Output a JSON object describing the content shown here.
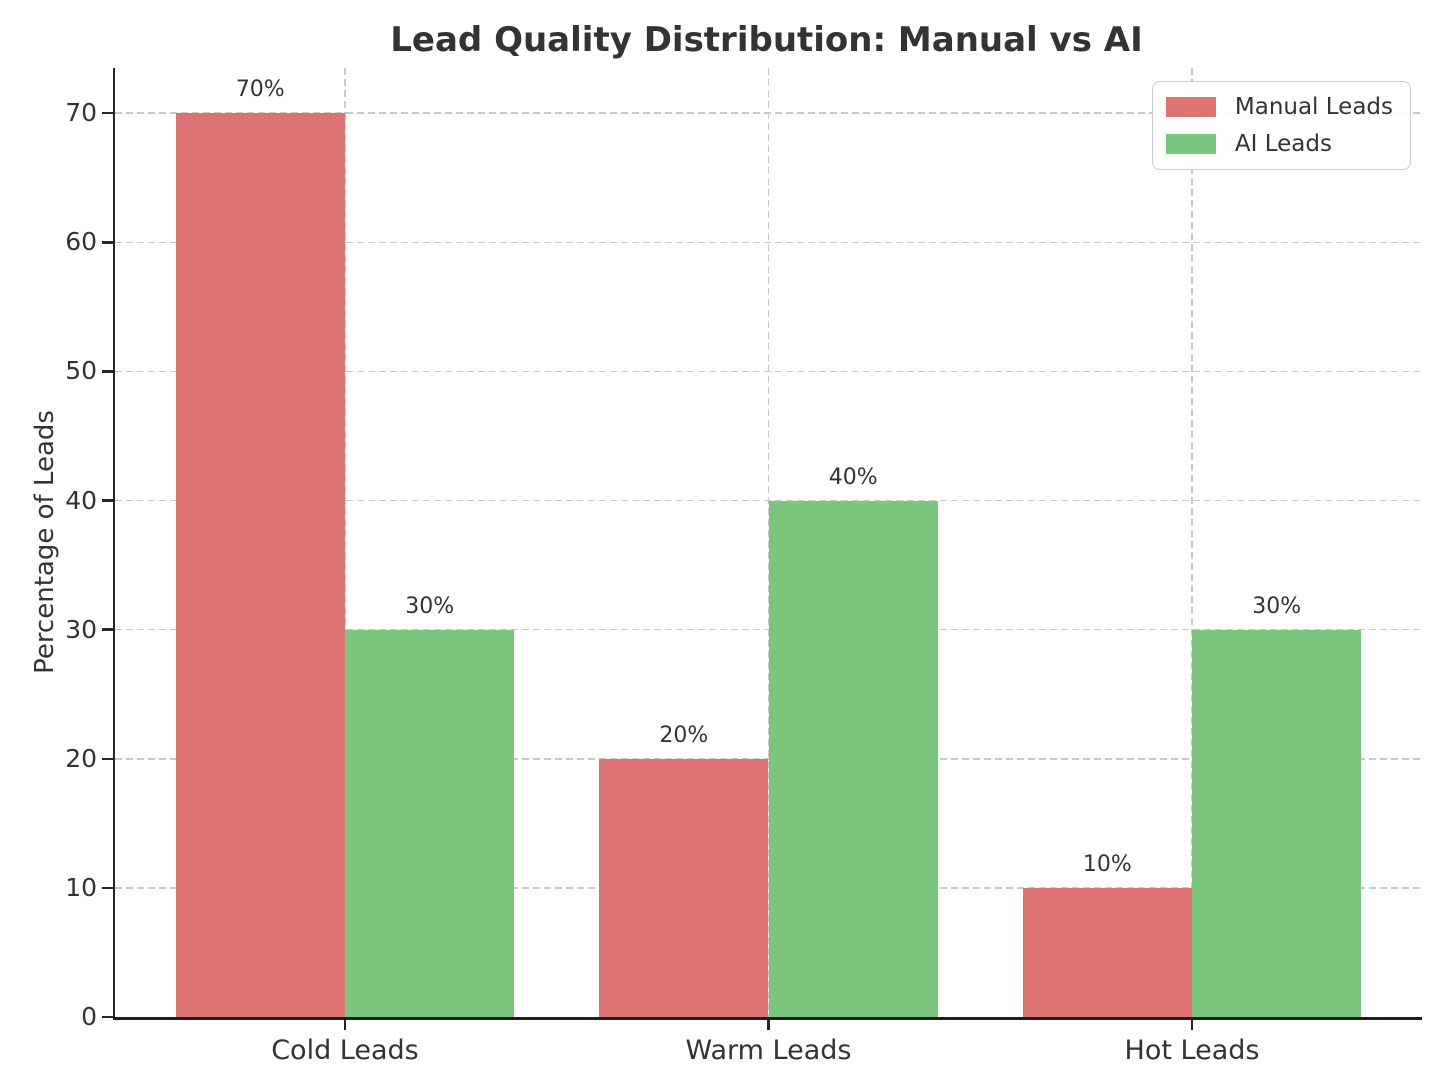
{
  "chart_data": {
    "type": "bar",
    "title": "Lead Quality Distribution: Manual vs AI",
    "categories": [
      "Cold Leads",
      "Warm Leads",
      "Hot Leads"
    ],
    "series": [
      {
        "name": "Manual Leads",
        "color": "#DD7373",
        "values": [
          70,
          20,
          10
        ],
        "labels": [
          "70%",
          "20%",
          "10%"
        ]
      },
      {
        "name": "AI Leads",
        "color": "#7CC57C",
        "values": [
          30,
          40,
          30
        ],
        "labels": [
          "30%",
          "40%",
          "30%"
        ]
      }
    ],
    "xlabel": "",
    "ylabel": "Percentage of Leads",
    "yticks": [
      0,
      10,
      20,
      30,
      40,
      50,
      60,
      70
    ],
    "ylim": [
      0,
      73.5
    ],
    "grid": true,
    "grid_style": "dashed",
    "legend_position": "upper-right",
    "colors": {
      "grid": "#C9C9C9",
      "axis": "#262626",
      "text": "#333333",
      "background": "#FFFFFF"
    }
  }
}
